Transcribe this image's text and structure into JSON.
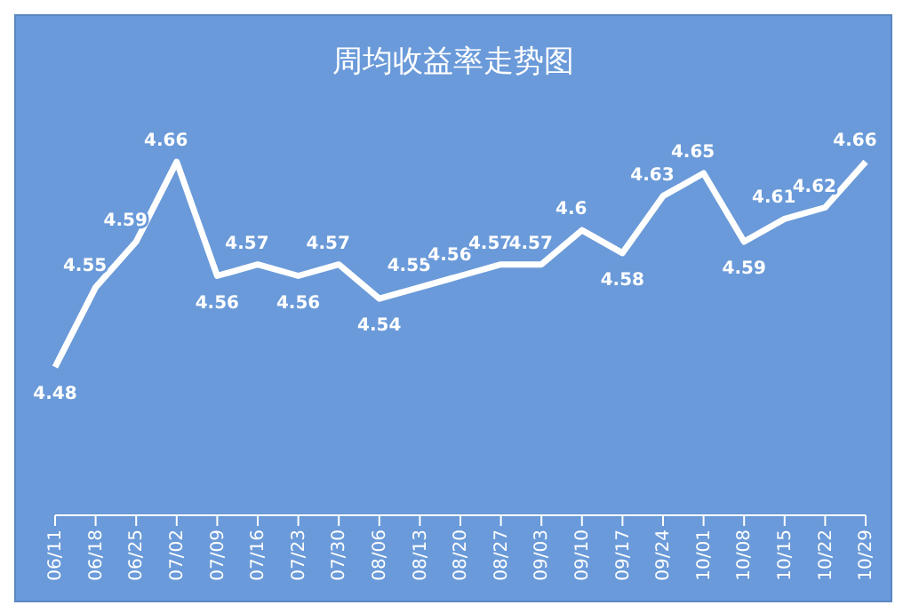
{
  "chart_data": {
    "type": "line",
    "title": "周均收益率走势图",
    "categories": [
      "06/11",
      "06/18",
      "06/25",
      "07/02",
      "07/09",
      "07/16",
      "07/23",
      "07/30",
      "08/06",
      "08/13",
      "08/20",
      "08/27",
      "09/03",
      "09/10",
      "09/17",
      "09/24",
      "10/01",
      "10/08",
      "10/15",
      "10/22",
      "10/29"
    ],
    "values": [
      4.48,
      4.55,
      4.59,
      4.66,
      4.56,
      4.57,
      4.56,
      4.57,
      4.54,
      4.55,
      4.56,
      4.57,
      4.57,
      4.6,
      4.58,
      4.63,
      4.65,
      4.59,
      4.61,
      4.62,
      4.66
    ],
    "color": "#ffffff",
    "data_labels": true,
    "marker": "none",
    "line_style": "solid",
    "tick_labels": "x"
  }
}
